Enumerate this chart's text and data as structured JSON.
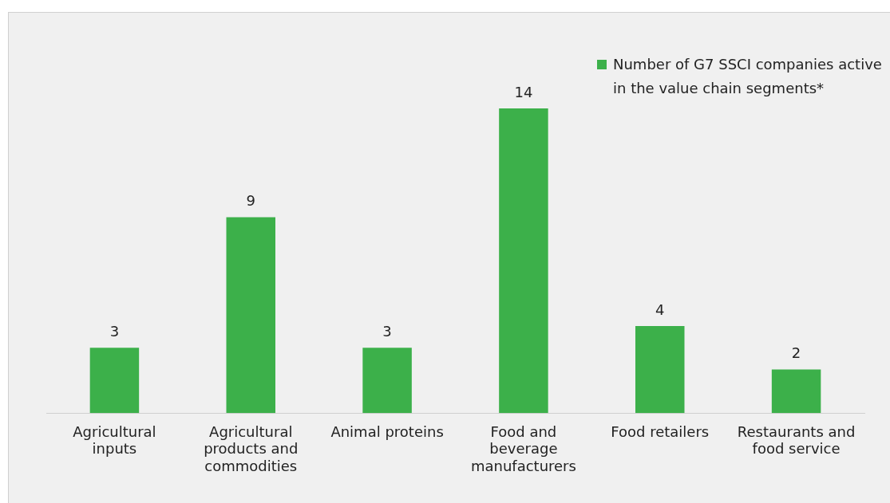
{
  "chart_data": {
    "type": "bar",
    "categories": [
      "Agricultural inputs",
      "Agricultural products and commodities",
      "Animal proteins",
      "Food and beverage manufacturers",
      "Food retailers",
      "Restaurants and food service"
    ],
    "series": [
      {
        "name": "Number of G7 SSCI companies active in the value chain segments*",
        "color": "#3cb04a",
        "values": [
          3,
          9,
          3,
          14,
          4,
          2
        ]
      }
    ],
    "data_labels": true,
    "grid": false,
    "legend": "top right",
    "tick_labels": "x"
  }
}
